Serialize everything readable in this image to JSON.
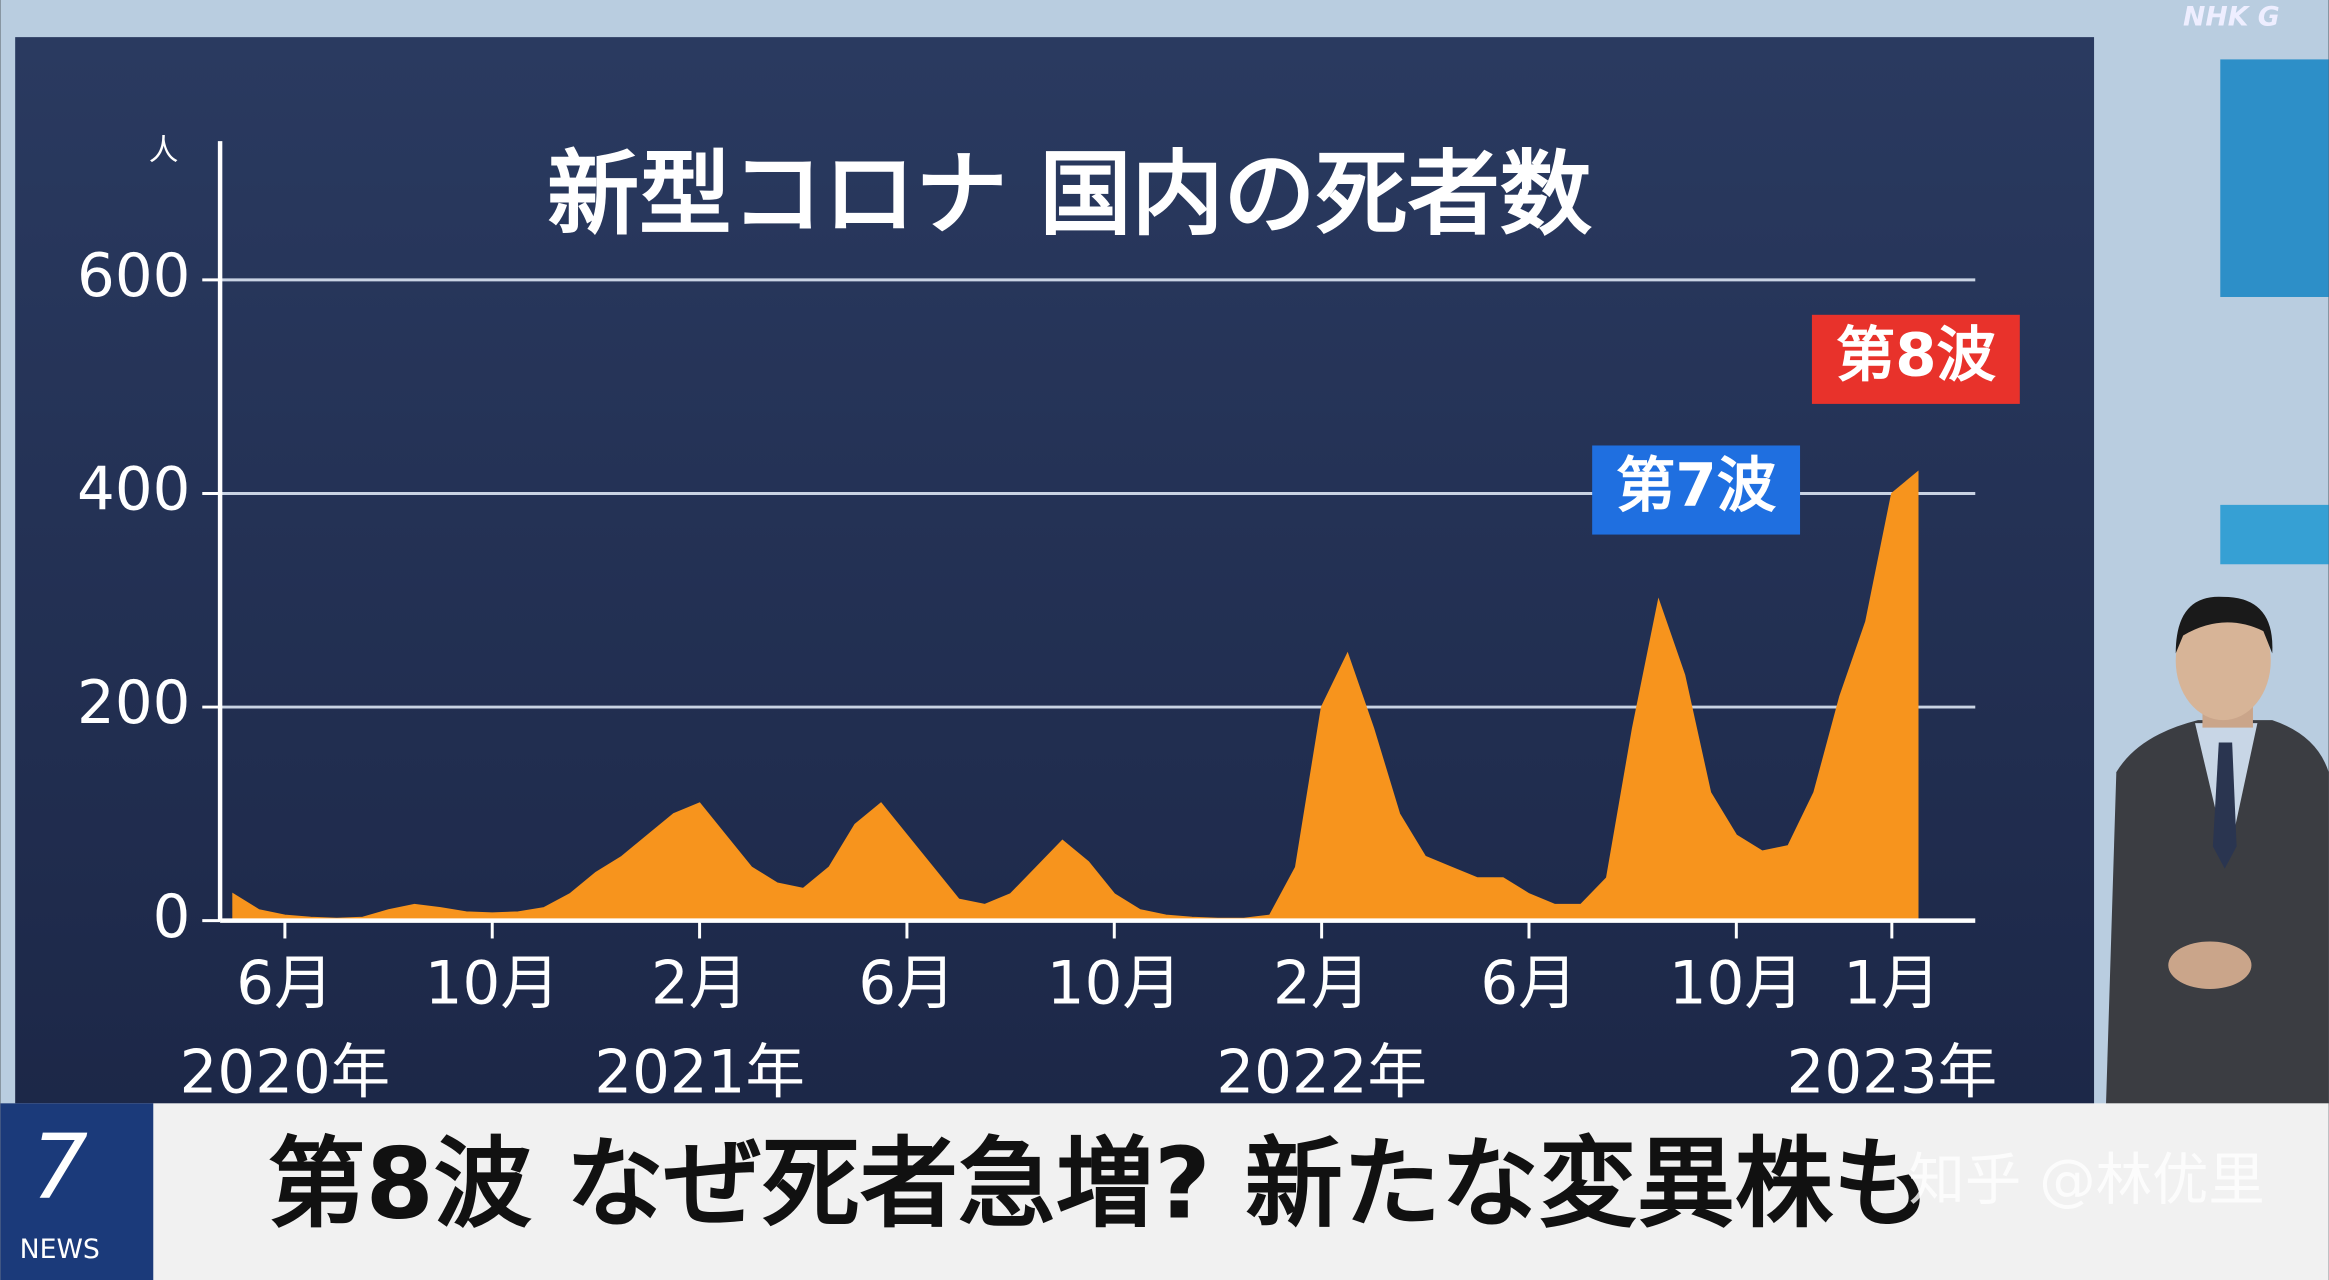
{
  "chart_data": {
    "type": "area",
    "title": "新型コロナ 国内の死者数",
    "y_unit": "人",
    "categories": [
      null,
      null,
      "6月",
      null,
      null,
      null,
      null,
      null,
      null,
      null,
      "10月",
      null,
      null,
      null,
      null,
      null,
      null,
      null,
      "2月",
      null,
      null,
      null,
      null,
      null,
      null,
      null,
      "6月",
      null,
      null,
      null,
      null,
      null,
      null,
      null,
      "10月",
      null,
      null,
      null,
      null,
      null,
      null,
      null,
      "2月",
      null,
      null,
      null,
      null,
      null,
      null,
      null,
      "6月",
      null,
      null,
      null,
      null,
      null,
      null,
      null,
      "10月",
      null,
      null,
      null,
      null,
      null,
      "1月",
      null
    ],
    "category_years": [
      null,
      null,
      "2020年",
      null,
      null,
      null,
      null,
      null,
      null,
      null,
      null,
      null,
      null,
      null,
      null,
      null,
      null,
      null,
      "2021年",
      null,
      null,
      null,
      null,
      null,
      null,
      null,
      null,
      null,
      null,
      null,
      null,
      null,
      null,
      null,
      null,
      null,
      null,
      null,
      null,
      null,
      null,
      null,
      "2022年",
      null,
      null,
      null,
      null,
      null,
      null,
      null,
      null,
      null,
      null,
      null,
      null,
      null,
      null,
      null,
      null,
      null,
      null,
      null,
      null,
      null,
      "2023年",
      null
    ],
    "values": [
      25,
      10,
      5,
      3,
      2,
      3,
      10,
      15,
      12,
      8,
      7,
      8,
      12,
      25,
      45,
      60,
      80,
      100,
      110,
      80,
      50,
      35,
      30,
      50,
      90,
      110,
      80,
      50,
      20,
      15,
      25,
      50,
      75,
      55,
      25,
      10,
      5,
      3,
      2,
      2,
      5,
      50,
      200,
      250,
      180,
      100,
      60,
      50,
      40,
      40,
      25,
      15,
      15,
      40,
      180,
      300,
      230,
      120,
      80,
      65,
      70,
      120,
      210,
      280,
      400,
      420
    ],
    "color": "#f7941d",
    "ylim": [
      0,
      730
    ],
    "yticks": [
      0,
      200,
      400,
      600
    ],
    "grid": true,
    "annotations": [
      {
        "text": "第7波",
        "color": "#1f6fe0"
      },
      {
        "text": "第8波",
        "color": "#e8322b"
      }
    ]
  },
  "screen": {
    "channel": "NHK G",
    "program_number": "7",
    "program_name": "NEWS",
    "headline": "第8波 なぜ死者急増? 新たな変異株も",
    "watermark": "知乎 @林优里"
  }
}
